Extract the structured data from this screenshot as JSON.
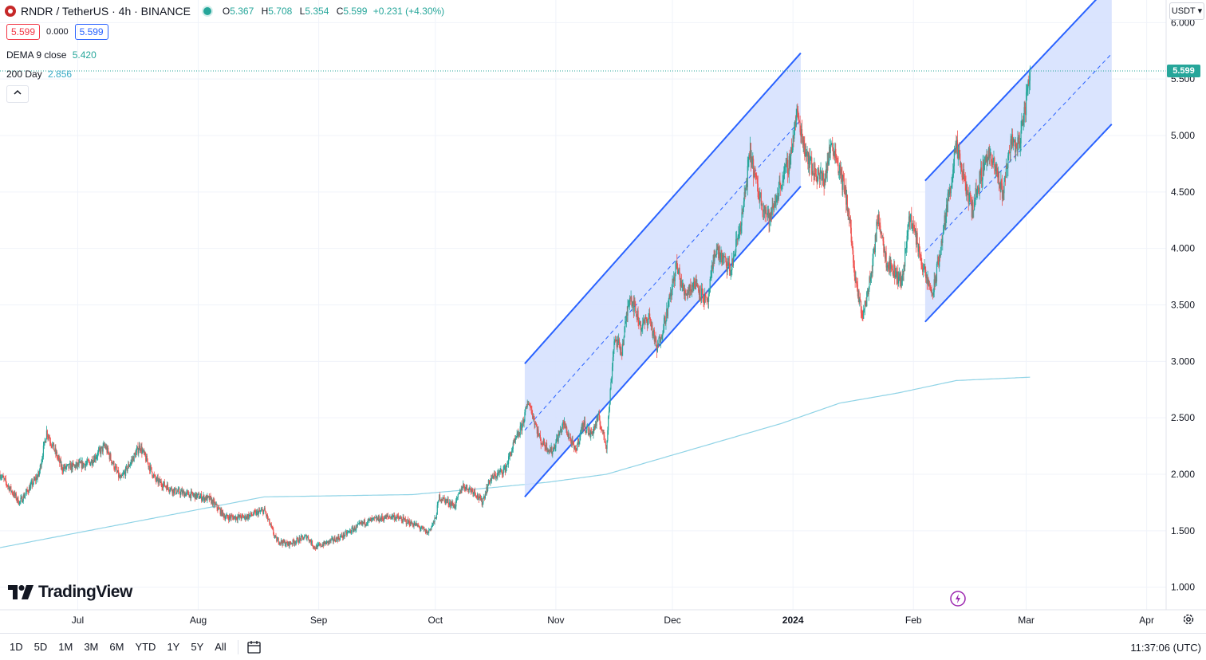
{
  "header": {
    "symbol": "RNDR / TetherUS · 4h · BINANCE",
    "open_label": "O",
    "open": "5.367",
    "high_label": "H",
    "high": "5.708",
    "low_label": "L",
    "low": "5.354",
    "close_label": "C",
    "close": "5.599",
    "change": "+0.231 (+4.30%)"
  },
  "price_boxes": {
    "sell": "5.599",
    "spread": "0.000",
    "buy": "5.599"
  },
  "indicators": [
    {
      "name": "DEMA 9 close",
      "value": "5.420",
      "color": "#26a69a"
    },
    {
      "name": "200 Day",
      "value": "2.856",
      "color": "#4fc3d9"
    }
  ],
  "currency": "USDT",
  "last_price": "5.599",
  "brand": "TradingView",
  "timeframes": [
    "1D",
    "5D",
    "1M",
    "3M",
    "6M",
    "YTD",
    "1Y",
    "5Y",
    "All"
  ],
  "clock": "11:37:06 (UTC)",
  "colors": {
    "up": "#26a69a",
    "down": "#ef5350",
    "channel": "#2962ff",
    "channel_fill": "#d3dffe",
    "ma": "#8fd3e6"
  },
  "chart_data": {
    "type": "candlestick",
    "yticks": [
      "1.000",
      "1.500",
      "2.000",
      "2.500",
      "3.000",
      "3.500",
      "4.000",
      "4.500",
      "5.000",
      "5.500",
      "6.000"
    ],
    "ylim": [
      0.8,
      6.2
    ],
    "xticks": [
      {
        "label": "Jul",
        "day": 4
      },
      {
        "label": "Aug",
        "day": 35
      },
      {
        "label": "Sep",
        "day": 66
      },
      {
        "label": "Oct",
        "day": 96
      },
      {
        "label": "Nov",
        "day": 127
      },
      {
        "label": "Dec",
        "day": 157
      },
      {
        "label": "2024",
        "day": 188,
        "bold": true
      },
      {
        "label": "Feb",
        "day": 219
      },
      {
        "label": "Mar",
        "day": 248
      },
      {
        "label": "Apr",
        "day": 279
      }
    ],
    "xlim": [
      -16,
      284
    ],
    "price_path": [
      [
        -16,
        2.0
      ],
      [
        -11,
        1.75
      ],
      [
        -6,
        2.0
      ],
      [
        -4,
        2.38
      ],
      [
        0,
        2.05
      ],
      [
        7,
        2.1
      ],
      [
        11,
        2.25
      ],
      [
        15,
        1.95
      ],
      [
        20,
        2.25
      ],
      [
        24,
        1.95
      ],
      [
        29,
        1.85
      ],
      [
        38,
        1.78
      ],
      [
        42,
        1.62
      ],
      [
        47,
        1.62
      ],
      [
        52,
        1.68
      ],
      [
        55,
        1.42
      ],
      [
        58,
        1.38
      ],
      [
        63,
        1.45
      ],
      [
        65,
        1.35
      ],
      [
        72,
        1.45
      ],
      [
        78,
        1.58
      ],
      [
        85,
        1.63
      ],
      [
        91,
        1.55
      ],
      [
        94,
        1.48
      ],
      [
        96,
        1.6
      ],
      [
        97,
        1.8
      ],
      [
        101,
        1.72
      ],
      [
        103,
        1.9
      ],
      [
        106,
        1.85
      ],
      [
        108,
        1.75
      ],
      [
        110,
        1.95
      ],
      [
        114,
        2.05
      ],
      [
        116,
        2.25
      ],
      [
        118,
        2.4
      ],
      [
        120,
        2.65
      ],
      [
        123,
        2.3
      ],
      [
        126,
        2.2
      ],
      [
        129,
        2.45
      ],
      [
        132,
        2.2
      ],
      [
        134,
        2.45
      ],
      [
        136,
        2.35
      ],
      [
        138,
        2.5
      ],
      [
        140,
        2.25
      ],
      [
        142,
        3.2
      ],
      [
        144,
        3.1
      ],
      [
        146,
        3.6
      ],
      [
        149,
        3.3
      ],
      [
        151,
        3.4
      ],
      [
        153,
        3.1
      ],
      [
        156,
        3.5
      ],
      [
        158,
        3.85
      ],
      [
        160,
        3.6
      ],
      [
        163,
        3.7
      ],
      [
        166,
        3.5
      ],
      [
        168,
        4.0
      ],
      [
        172,
        3.8
      ],
      [
        175,
        4.3
      ],
      [
        177,
        4.85
      ],
      [
        179,
        4.5
      ],
      [
        182,
        4.25
      ],
      [
        185,
        4.6
      ],
      [
        187,
        4.75
      ],
      [
        189,
        5.2
      ],
      [
        191,
        4.9
      ],
      [
        193,
        4.7
      ],
      [
        196,
        4.6
      ],
      [
        198,
        4.95
      ],
      [
        200,
        4.7
      ],
      [
        202,
        4.4
      ],
      [
        203,
        4.1
      ],
      [
        204,
        3.7
      ],
      [
        206,
        3.4
      ],
      [
        208,
        3.75
      ],
      [
        210,
        4.3
      ],
      [
        212,
        3.9
      ],
      [
        214,
        3.8
      ],
      [
        216,
        3.7
      ],
      [
        218,
        4.3
      ],
      [
        220,
        4.05
      ],
      [
        222,
        3.75
      ],
      [
        224,
        3.6
      ],
      [
        226,
        4.0
      ],
      [
        228,
        4.45
      ],
      [
        230,
        4.9
      ],
      [
        232,
        4.6
      ],
      [
        234,
        4.35
      ],
      [
        236,
        4.6
      ],
      [
        238,
        4.85
      ],
      [
        240,
        4.7
      ],
      [
        242,
        4.5
      ],
      [
        244,
        4.95
      ],
      [
        246,
        4.9
      ],
      [
        248,
        5.3
      ],
      [
        249,
        5.6
      ]
    ],
    "ma200": [
      [
        -16,
        1.35
      ],
      [
        52,
        1.8
      ],
      [
        90,
        1.82
      ],
      [
        110,
        1.88
      ],
      [
        125,
        1.93
      ],
      [
        140,
        2.0
      ],
      [
        155,
        2.15
      ],
      [
        170,
        2.3
      ],
      [
        185,
        2.45
      ],
      [
        200,
        2.63
      ],
      [
        215,
        2.72
      ],
      [
        230,
        2.83
      ],
      [
        249,
        2.86
      ]
    ],
    "channels": [
      {
        "start": [
          119,
          1.8
        ],
        "end": [
          190,
          4.55
        ],
        "offset": 1.18
      },
      {
        "start": [
          222,
          3.35
        ],
        "end": [
          270,
          5.1
        ],
        "offset": 1.25
      }
    ]
  }
}
